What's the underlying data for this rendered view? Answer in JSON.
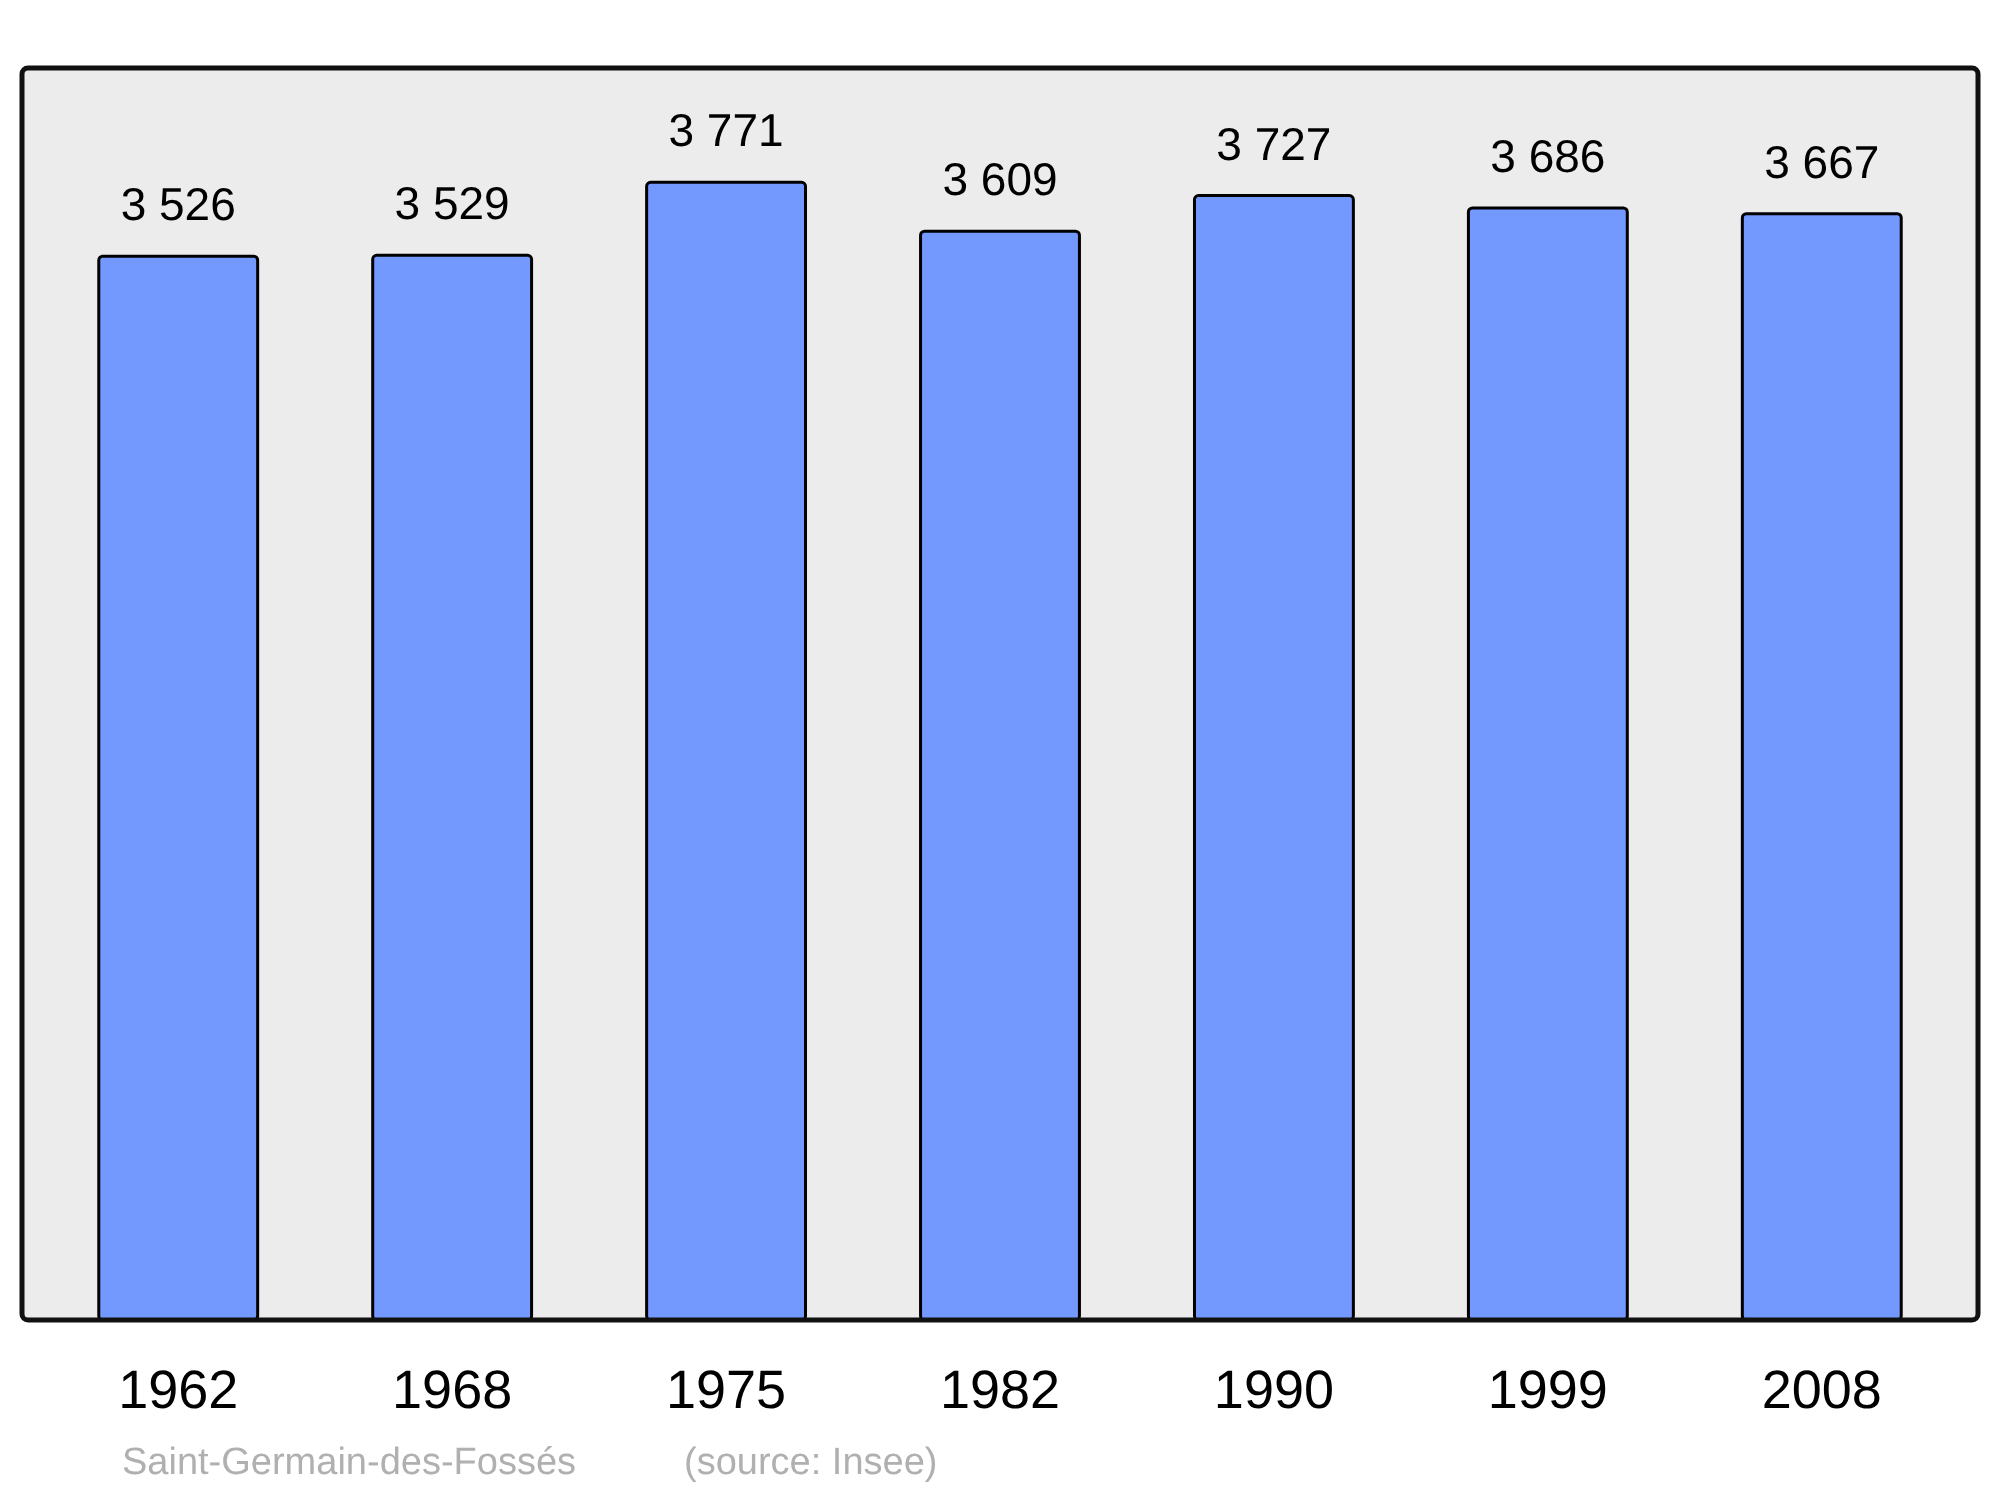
{
  "chart_data": {
    "type": "bar",
    "categories": [
      "1962",
      "1968",
      "1975",
      "1982",
      "1990",
      "1999",
      "2008"
    ],
    "values": [
      3526,
      3529,
      3771,
      3609,
      3727,
      3686,
      3667
    ],
    "value_labels": [
      "3 526",
      "3 529",
      "3 771",
      "3 609",
      "3 727",
      "3 686",
      "3 667"
    ],
    "color": "#7399ff",
    "ylim": [
      0,
      4150
    ],
    "tick_labels": "x",
    "annotations": [
      "Saint-Germain-des-Fossés",
      "(source: Insee)"
    ]
  }
}
